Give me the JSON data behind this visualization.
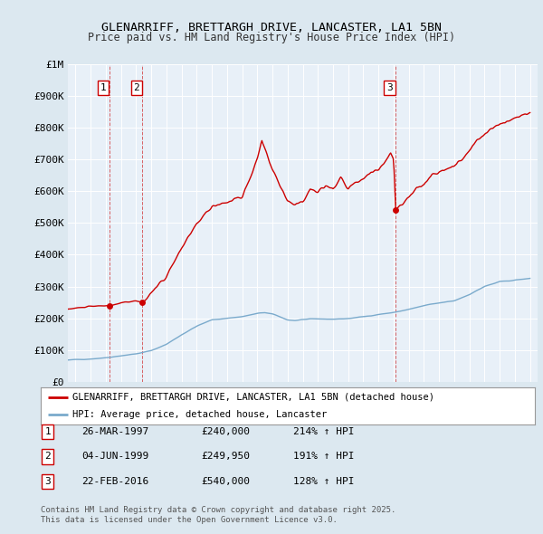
{
  "title": "GLENARRIFF, BRETTARGH DRIVE, LANCASTER, LA1 5BN",
  "subtitle": "Price paid vs. HM Land Registry's House Price Index (HPI)",
  "background_color": "#dce8f0",
  "plot_bg_color": "#e8f0f8",
  "legend_label_red": "GLENARRIFF, BRETTARGH DRIVE, LANCASTER, LA1 5BN (detached house)",
  "legend_label_blue": "HPI: Average price, detached house, Lancaster",
  "footer": "Contains HM Land Registry data © Crown copyright and database right 2025.\nThis data is licensed under the Open Government Licence v3.0.",
  "sale_points": [
    {
      "label": "1",
      "date_x": 1997.23,
      "price": 240000
    },
    {
      "label": "2",
      "date_x": 1999.42,
      "price": 249950
    },
    {
      "label": "3",
      "date_x": 2016.14,
      "price": 540000
    }
  ],
  "sale_info": [
    {
      "num": "1",
      "date": "26-MAR-1997",
      "price": "£240,000",
      "hpi": "214% ↑ HPI"
    },
    {
      "num": "2",
      "date": "04-JUN-1999",
      "price": "£249,950",
      "hpi": "191% ↑ HPI"
    },
    {
      "num": "3",
      "date": "22-FEB-2016",
      "price": "£540,000",
      "hpi": "128% ↑ HPI"
    }
  ],
  "ylim": [
    0,
    1000000
  ],
  "xlim": [
    1994.5,
    2025.5
  ],
  "red_color": "#cc0000",
  "blue_color": "#7aaacc",
  "dashed_color": "#cc0000",
  "hpi_keypoints": [
    [
      1994.5,
      68000
    ],
    [
      1995.0,
      70000
    ],
    [
      1996.0,
      72000
    ],
    [
      1997.0,
      76000
    ],
    [
      1998.0,
      82000
    ],
    [
      1999.0,
      88000
    ],
    [
      2000.0,
      98000
    ],
    [
      2001.0,
      118000
    ],
    [
      2002.0,
      148000
    ],
    [
      2003.0,
      175000
    ],
    [
      2004.0,
      195000
    ],
    [
      2005.0,
      200000
    ],
    [
      2006.0,
      205000
    ],
    [
      2007.0,
      215000
    ],
    [
      2007.5,
      218000
    ],
    [
      2008.0,
      213000
    ],
    [
      2008.5,
      205000
    ],
    [
      2009.0,
      195000
    ],
    [
      2009.5,
      193000
    ],
    [
      2010.0,
      196000
    ],
    [
      2011.0,
      198000
    ],
    [
      2012.0,
      197000
    ],
    [
      2013.0,
      199000
    ],
    [
      2014.0,
      205000
    ],
    [
      2015.0,
      212000
    ],
    [
      2016.0,
      218000
    ],
    [
      2017.0,
      228000
    ],
    [
      2018.0,
      240000
    ],
    [
      2019.0,
      248000
    ],
    [
      2020.0,
      255000
    ],
    [
      2021.0,
      275000
    ],
    [
      2022.0,
      300000
    ],
    [
      2023.0,
      315000
    ],
    [
      2024.0,
      320000
    ],
    [
      2025.0,
      325000
    ]
  ],
  "prop_keypoints_seg1": [
    [
      1994.5,
      228000
    ],
    [
      1995.0,
      232000
    ],
    [
      1996.0,
      237000
    ],
    [
      1997.0,
      240000
    ],
    [
      1997.23,
      240000
    ]
  ],
  "prop_keypoints_seg2": [
    [
      1997.23,
      240000
    ],
    [
      1998.0,
      248000
    ],
    [
      1999.0,
      255000
    ],
    [
      1999.42,
      249950
    ]
  ],
  "prop_keypoints_seg3": [
    [
      1999.42,
      249950
    ],
    [
      2000.0,
      278000
    ],
    [
      2001.0,
      336000
    ],
    [
      2002.0,
      420000
    ],
    [
      2003.0,
      497000
    ],
    [
      2004.0,
      553000
    ],
    [
      2005.0,
      567000
    ],
    [
      2006.0,
      581000
    ],
    [
      2007.0,
      700000
    ],
    [
      2007.3,
      760000
    ],
    [
      2007.6,
      720000
    ],
    [
      2008.0,
      670000
    ],
    [
      2008.5,
      620000
    ],
    [
      2009.0,
      570000
    ],
    [
      2009.5,
      560000
    ],
    [
      2010.0,
      568000
    ],
    [
      2010.5,
      610000
    ],
    [
      2011.0,
      595000
    ],
    [
      2011.5,
      620000
    ],
    [
      2012.0,
      608000
    ],
    [
      2012.5,
      640000
    ],
    [
      2013.0,
      610000
    ],
    [
      2013.5,
      630000
    ],
    [
      2014.0,
      640000
    ],
    [
      2014.5,
      660000
    ],
    [
      2015.0,
      665000
    ],
    [
      2015.5,
      700000
    ],
    [
      2015.8,
      720000
    ],
    [
      2016.0,
      700000
    ],
    [
      2016.14,
      540000
    ]
  ],
  "prop_keypoints_seg4": [
    [
      2016.14,
      540000
    ],
    [
      2016.5,
      555000
    ],
    [
      2017.0,
      580000
    ],
    [
      2017.5,
      610000
    ],
    [
      2018.0,
      620000
    ],
    [
      2018.5,
      650000
    ],
    [
      2019.0,
      660000
    ],
    [
      2019.5,
      670000
    ],
    [
      2020.0,
      680000
    ],
    [
      2020.5,
      700000
    ],
    [
      2021.0,
      730000
    ],
    [
      2021.5,
      760000
    ],
    [
      2022.0,
      780000
    ],
    [
      2022.5,
      800000
    ],
    [
      2023.0,
      810000
    ],
    [
      2023.5,
      820000
    ],
    [
      2024.0,
      830000
    ],
    [
      2024.5,
      840000
    ],
    [
      2025.0,
      845000
    ]
  ]
}
